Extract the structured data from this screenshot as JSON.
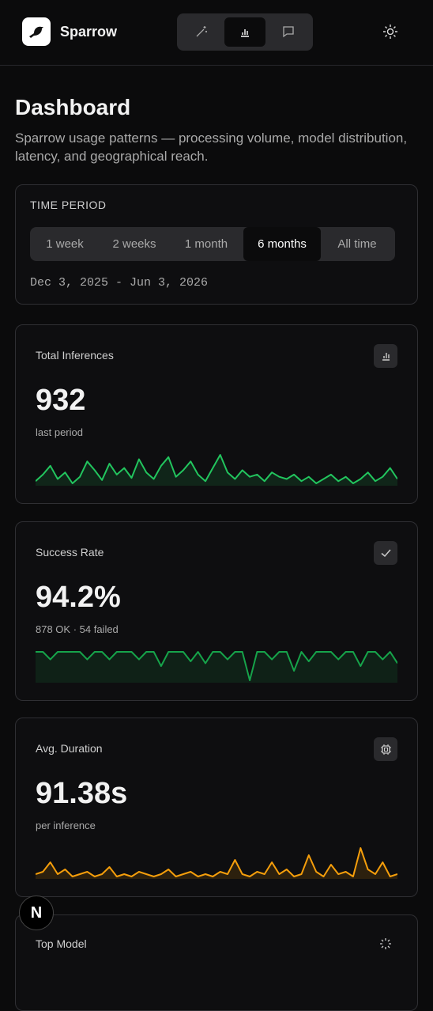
{
  "header": {
    "brand": "Sparrow"
  },
  "page": {
    "title": "Dashboard",
    "subtitle": "Sparrow usage patterns — processing volume, model distribution, latency, and geographical reach."
  },
  "time_period": {
    "label": "TIME PERIOD",
    "options": [
      "1 week",
      "2 weeks",
      "1 month",
      "6 months",
      "All time"
    ],
    "selected": 3,
    "range": "Dec 3, 2025 - Jun 3, 2026"
  },
  "cards": [
    {
      "title": "Total Inferences",
      "value": "932",
      "caption": "last period",
      "sparkline": {
        "color": "#22c55e",
        "values": [
          8,
          14,
          22,
          10,
          16,
          6,
          12,
          26,
          18,
          9,
          24,
          14,
          20,
          11,
          28,
          16,
          10,
          22,
          30,
          12,
          18,
          26,
          14,
          8,
          20,
          32,
          16,
          10,
          18,
          12,
          14,
          8,
          16,
          12,
          10,
          14,
          8,
          12,
          6,
          10,
          14,
          8,
          12,
          6,
          10,
          16,
          8,
          12,
          20,
          10
        ]
      }
    },
    {
      "title": "Success Rate",
      "value": "94.2%",
      "caption": "878 OK · 54 failed",
      "sparkline": {
        "color": "#16a34a",
        "values": [
          100,
          100,
          92,
          100,
          100,
          100,
          100,
          92,
          100,
          100,
          92,
          100,
          100,
          100,
          92,
          100,
          100,
          85,
          100,
          100,
          100,
          90,
          100,
          88,
          100,
          100,
          92,
          100,
          100,
          70,
          100,
          100,
          92,
          100,
          100,
          80,
          100,
          90,
          100,
          100,
          100,
          92,
          100,
          100,
          85,
          100,
          100,
          92,
          100,
          88
        ]
      }
    },
    {
      "title": "Avg. Duration",
      "value": "91.38s",
      "caption": "per inference",
      "sparkline": {
        "color": "#f59e0b",
        "values": [
          12,
          14,
          22,
          12,
          16,
          10,
          12,
          14,
          10,
          12,
          18,
          10,
          12,
          10,
          14,
          12,
          10,
          12,
          16,
          10,
          12,
          14,
          10,
          12,
          10,
          14,
          12,
          24,
          12,
          10,
          14,
          12,
          22,
          12,
          16,
          10,
          12,
          28,
          14,
          10,
          20,
          12,
          14,
          10,
          34,
          16,
          12,
          22,
          10,
          12
        ]
      }
    }
  ],
  "partial_card": {
    "title": "Top Model"
  },
  "badge": "N"
}
